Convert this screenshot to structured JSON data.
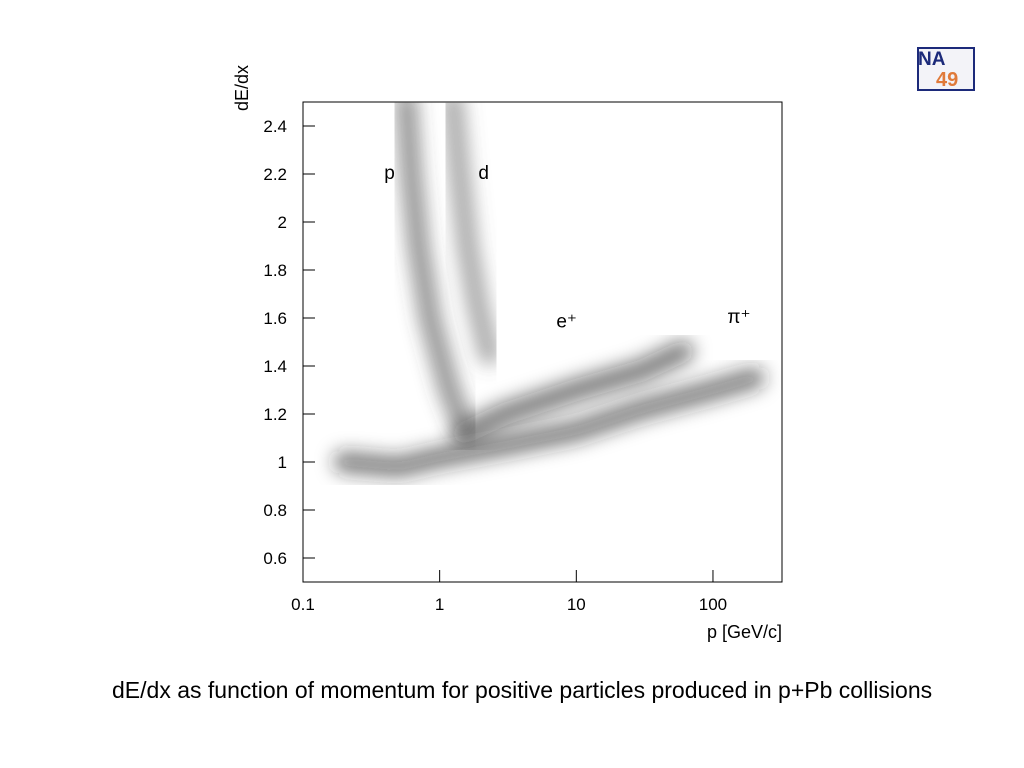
{
  "logo": {
    "top": "NA",
    "bottom": "49"
  },
  "chart_data": {
    "type": "density-bands",
    "ylabel": "dE/dx",
    "xlabel": "p [GeV/c]",
    "xscale": "log",
    "xlim": [
      0.1,
      320
    ],
    "xticks": [
      0.1,
      1,
      10,
      100
    ],
    "ylim": [
      0.5,
      2.5
    ],
    "yticks": [
      0.6,
      0.8,
      1,
      1.2,
      1.4,
      1.6,
      1.8,
      2,
      2.2,
      2.4
    ],
    "series": [
      {
        "color": "#222222",
        "x": [
          0.2,
          0.5,
          1,
          3,
          10,
          30,
          100,
          200
        ],
        "y": [
          1.0,
          0.98,
          1.02,
          1.07,
          1.13,
          1.22,
          1.3,
          1.35
        ]
      },
      {
        "color": "#111111",
        "x": [
          1.5,
          3,
          10,
          30,
          60
        ],
        "y": [
          1.12,
          1.2,
          1.3,
          1.38,
          1.46
        ]
      },
      {
        "color": "#444444",
        "x": [
          0.57,
          0.62,
          0.7,
          0.85,
          1,
          1.18,
          1.5
        ],
        "y": [
          2.5,
          2.2,
          1.9,
          1.6,
          1.45,
          1.3,
          1.15
        ]
      },
      {
        "color": "#666666",
        "x": [
          1.25,
          1.4,
          1.6,
          1.9,
          2.3
        ],
        "y": [
          2.5,
          2.2,
          1.9,
          1.65,
          1.45
        ]
      }
    ],
    "annotations": [
      {
        "text": "p",
        "x": 0.43,
        "y": 2.18
      },
      {
        "text": "d",
        "x": 2.1,
        "y": 2.18
      },
      {
        "text": "e⁺",
        "x": 8.5,
        "y": 1.56
      },
      {
        "text": "π⁺",
        "x": 155,
        "y": 1.58
      }
    ]
  },
  "caption": "dE/dx as function of momentum for positive particles produced in p+Pb collisions"
}
